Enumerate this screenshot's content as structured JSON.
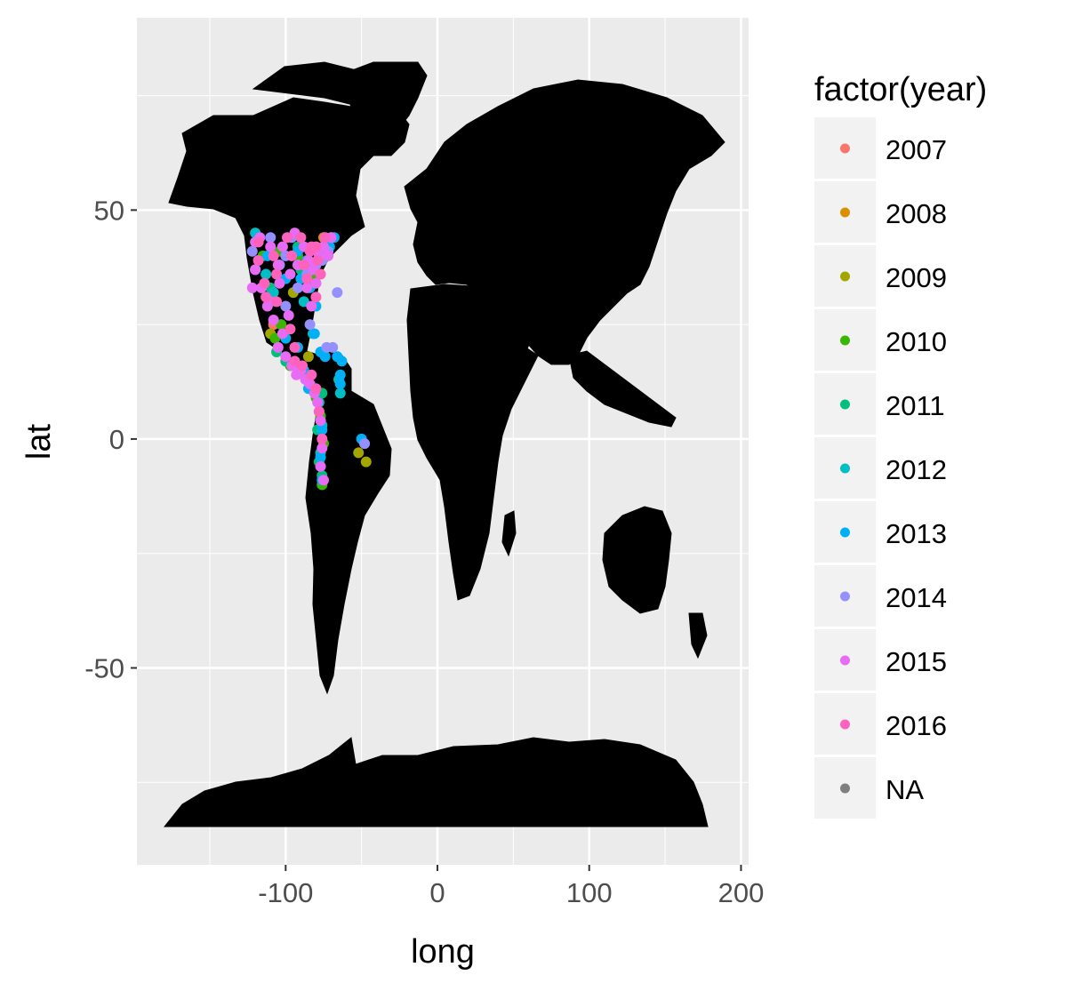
{
  "chart_data": {
    "type": "scatter",
    "title": "",
    "xlabel": "long",
    "ylabel": "lat",
    "xlim": [
      -198,
      205
    ],
    "ylim": [
      -93,
      92
    ],
    "x_breaks": [
      -100,
      0,
      100,
      200
    ],
    "x_tick_labels": [
      "-100",
      "0",
      "100",
      "200"
    ],
    "y_breaks": [
      -50,
      0,
      50
    ],
    "y_tick_labels": [
      "-50",
      "0",
      "50"
    ],
    "grid": true,
    "background": "#ebebeb",
    "land_color": "#000000",
    "legend": {
      "title": "factor(year)",
      "position": "right",
      "entries": [
        {
          "label": "2007",
          "color": "#F8766D"
        },
        {
          "label": "2008",
          "color": "#D89000"
        },
        {
          "label": "2009",
          "color": "#A3A500"
        },
        {
          "label": "2010",
          "color": "#39B600"
        },
        {
          "label": "2011",
          "color": "#00BF7D"
        },
        {
          "label": "2012",
          "color": "#00BFC4"
        },
        {
          "label": "2013",
          "color": "#00B0F6"
        },
        {
          "label": "2014",
          "color": "#9590FF"
        },
        {
          "label": "2015",
          "color": "#E76BF3"
        },
        {
          "label": "2016",
          "color": "#FF62BC"
        },
        {
          "label": "NA",
          "color": "#7F7F7F"
        }
      ]
    },
    "series": [
      {
        "name": "2007",
        "points": [
          [
            -108,
            25
          ],
          [
            -72,
            43
          ]
        ]
      },
      {
        "name": "2008",
        "points": [
          [
            -75,
            44
          ]
        ]
      },
      {
        "name": "2009",
        "points": [
          [
            -110,
            23
          ],
          [
            -95,
            32
          ],
          [
            -52,
            -3
          ],
          [
            -47,
            -5
          ],
          [
            -85,
            18
          ]
        ]
      },
      {
        "name": "2010",
        "points": [
          [
            -115,
            40
          ],
          [
            -107,
            22
          ],
          [
            -103,
            25
          ],
          [
            -97,
            16
          ],
          [
            -88,
            14
          ],
          [
            -80,
            9
          ],
          [
            -77,
            5
          ],
          [
            -75,
            -1
          ],
          [
            -76,
            -10
          ],
          [
            -104,
            41
          ],
          [
            -92,
            40
          ],
          [
            -82,
            35
          ]
        ]
      },
      {
        "name": "2011",
        "points": [
          [
            -110,
            33
          ],
          [
            -106,
            19
          ],
          [
            -100,
            17
          ],
          [
            -86,
            13
          ],
          [
            -79,
            2
          ],
          [
            -78,
            -5
          ],
          [
            -76,
            -8
          ],
          [
            -92,
            42
          ],
          [
            -76,
            10
          ],
          [
            -90,
            37
          ]
        ]
      },
      {
        "name": "2012",
        "points": [
          [
            -120,
            45
          ],
          [
            -113,
            36
          ],
          [
            -108,
            32
          ],
          [
            -82,
            23
          ],
          [
            -78,
            8
          ],
          [
            -76,
            3
          ],
          [
            -77,
            -3
          ],
          [
            -64,
            10
          ],
          [
            -65,
            13
          ],
          [
            -70,
            44
          ],
          [
            -88,
            30
          ]
        ]
      },
      {
        "name": "2013",
        "points": [
          [
            -118,
            44
          ],
          [
            -112,
            40
          ],
          [
            -100,
            35
          ],
          [
            -92,
            41
          ],
          [
            -84,
            33
          ],
          [
            -80,
            29
          ],
          [
            -100,
            22
          ],
          [
            -92,
            20
          ],
          [
            -88,
            15
          ],
          [
            -85,
            11
          ],
          [
            -78,
            6
          ],
          [
            -76,
            2
          ],
          [
            -77,
            -4
          ],
          [
            -76,
            -9
          ],
          [
            -50,
            0
          ],
          [
            -64,
            14
          ],
          [
            -63,
            17
          ],
          [
            -64,
            12
          ],
          [
            -66,
            18
          ],
          [
            -74,
            18
          ],
          [
            -77,
            19
          ],
          [
            -81,
            23
          ],
          [
            -105,
            20
          ],
          [
            -90,
            35
          ],
          [
            -71,
            42
          ],
          [
            -68,
            44
          ],
          [
            -86,
            39
          ]
        ]
      },
      {
        "name": "2014",
        "points": [
          [
            -66,
            32
          ],
          [
            -48,
            -1
          ],
          [
            -120,
            37
          ],
          [
            -122,
            41
          ],
          [
            -104,
            38
          ],
          [
            -96,
            44
          ],
          [
            -80,
            38
          ],
          [
            -72,
            41
          ],
          [
            -110,
            44
          ],
          [
            -100,
            40
          ],
          [
            -86,
            36
          ],
          [
            -69,
            20
          ],
          [
            -73,
            20
          ],
          [
            -84,
            25
          ],
          [
            -100,
            29
          ],
          [
            -92,
            33
          ],
          [
            -76,
            39
          ]
        ]
      },
      {
        "name": "2015",
        "points": [
          [
            -122,
            33
          ],
          [
            -120,
            37
          ],
          [
            -117,
            44
          ],
          [
            -110,
            42
          ],
          [
            -105,
            38
          ],
          [
            -102,
            42
          ],
          [
            -97,
            36
          ],
          [
            -94,
            45
          ],
          [
            -88,
            42
          ],
          [
            -85,
            39
          ],
          [
            -82,
            37
          ],
          [
            -80,
            34
          ],
          [
            -78,
            40
          ],
          [
            -75,
            42
          ],
          [
            -72,
            40
          ],
          [
            -70,
            44
          ],
          [
            -104,
            34
          ],
          [
            -110,
            30
          ],
          [
            -116,
            33
          ],
          [
            -105,
            20
          ],
          [
            -100,
            18
          ],
          [
            -96,
            16
          ],
          [
            -93,
            14
          ],
          [
            -90,
            15
          ],
          [
            -87,
            13
          ],
          [
            -84,
            12
          ],
          [
            -81,
            10
          ],
          [
            -79,
            8
          ],
          [
            -77,
            4
          ],
          [
            -76,
            -2
          ],
          [
            -77,
            -6
          ],
          [
            -75,
            -9
          ],
          [
            -102,
            23
          ],
          [
            -120,
            43
          ],
          [
            -86,
            33
          ],
          [
            -83,
            29
          ],
          [
            -98,
            27
          ],
          [
            -108,
            26
          ],
          [
            -112,
            29
          ],
          [
            -92,
            38
          ]
        ]
      },
      {
        "name": "2016",
        "points": [
          [
            -118,
            39
          ],
          [
            -114,
            34
          ],
          [
            -106,
            36
          ],
          [
            -99,
            44
          ],
          [
            -90,
            44
          ],
          [
            -83,
            42
          ],
          [
            -79,
            39
          ],
          [
            -77,
            36
          ],
          [
            -74,
            44
          ],
          [
            -118,
            43
          ],
          [
            -108,
            40
          ],
          [
            -96,
            40
          ],
          [
            -88,
            38
          ],
          [
            -84,
            41
          ],
          [
            -80,
            42
          ],
          [
            -106,
            30
          ],
          [
            -97,
            24
          ],
          [
            -94,
            17
          ],
          [
            -89,
            16
          ],
          [
            -83,
            14
          ],
          [
            -80,
            11
          ],
          [
            -78,
            6
          ],
          [
            -76,
            0
          ],
          [
            -80,
            31
          ],
          [
            -86,
            35
          ],
          [
            -113,
            31
          ],
          [
            -94,
            20
          ]
        ]
      },
      {
        "name": "NA",
        "points": []
      }
    ]
  }
}
